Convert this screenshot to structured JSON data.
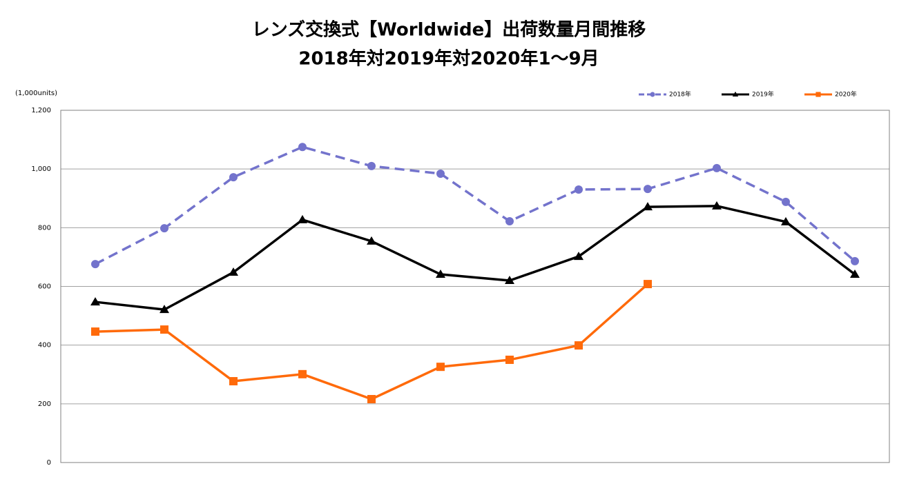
{
  "chart_data": {
    "type": "line",
    "title": "レンズ交換式【Worldwide】出荷数量月間推移",
    "subtitle": "2018年対2019年対2020年1～9月",
    "y_axis_label": "(1,000units)",
    "categories": [
      null,
      null,
      null,
      null,
      null,
      null,
      null,
      null,
      null,
      null,
      null,
      null
    ],
    "series": [
      {
        "name": "2018年",
        "color": "#7373cc",
        "line_style": "dashed",
        "marker": "circle",
        "values": [
          676,
          798,
          972,
          1075,
          1010,
          984,
          822,
          930,
          932,
          1003,
          888,
          686
        ]
      },
      {
        "name": "2019年",
        "color": "#000000",
        "line_style": "solid",
        "marker": "triangle",
        "values": [
          547,
          521,
          648,
          827,
          754,
          641,
          620,
          702,
          871,
          874,
          820,
          641
        ]
      },
      {
        "name": "2020年",
        "color": "#ff6a0a",
        "line_style": "solid",
        "marker": "square",
        "values": [
          446,
          453,
          277,
          301,
          216,
          326,
          350,
          399,
          608,
          null,
          null,
          null
        ]
      }
    ],
    "ylim": [
      0,
      1200
    ],
    "yticks": [
      0,
      200,
      400,
      600,
      800,
      {
        "value": 1000,
        "label": "1,000"
      },
      {
        "value": 1200,
        "label": "1,200"
      }
    ],
    "grid": true,
    "legend": "top-right"
  }
}
